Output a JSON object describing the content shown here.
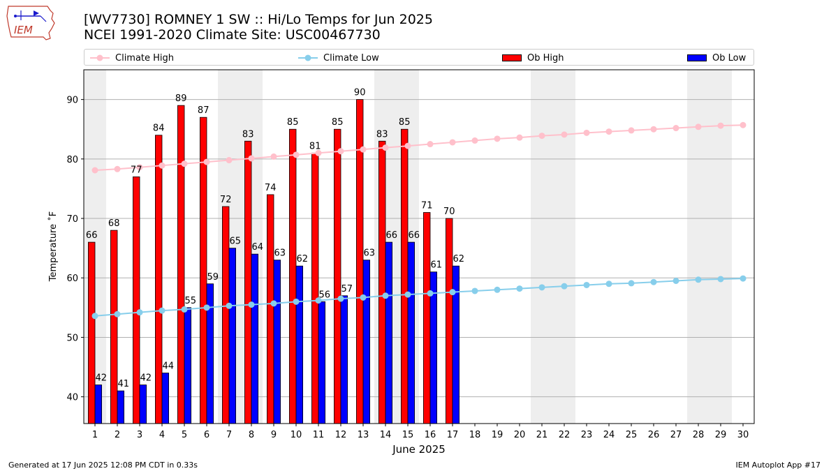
{
  "title": {
    "line1": "[WV7730] ROMNEY 1 SW :: Hi/Lo Temps for Jun 2025",
    "line2": "NCEI 1991-2020 Climate Site: USC00467730"
  },
  "logo": {
    "text": "IEM",
    "icon": "iem-iowa-logo-icon"
  },
  "footer": {
    "left": "Generated at 17 Jun 2025 12:08 PM CDT in 0.33s",
    "right": "IEM Autoplot App #17"
  },
  "chart_data": {
    "type": "bar",
    "xlabel": "June 2025",
    "ylabel": "Temperature ˚F",
    "ylim": [
      35.5,
      95
    ],
    "xlim": [
      0.5,
      30.5
    ],
    "yticks": [
      40,
      50,
      60,
      70,
      80,
      90
    ],
    "grid": "horizontal",
    "legend_position": "top",
    "days": [
      1,
      2,
      3,
      4,
      5,
      6,
      7,
      8,
      9,
      10,
      11,
      12,
      13,
      14,
      15,
      16,
      17,
      18,
      19,
      20,
      21,
      22,
      23,
      24,
      25,
      26,
      27,
      28,
      29,
      30
    ],
    "weekend_days": [
      1,
      7,
      8,
      14,
      15,
      21,
      22,
      28,
      29
    ],
    "legend": [
      {
        "label": "Climate High",
        "kind": "line",
        "color": "#ffc0cb"
      },
      {
        "label": "Climate Low",
        "kind": "line",
        "color": "#87ceeb"
      },
      {
        "label": "Ob High",
        "kind": "bar",
        "color": "#ff0000"
      },
      {
        "label": "Ob Low",
        "kind": "bar",
        "color": "#0000ff"
      }
    ],
    "series": [
      {
        "name": "Ob High",
        "kind": "bar",
        "color": "#ff0000",
        "values": [
          66,
          68,
          77,
          84,
          89,
          87,
          72,
          83,
          74,
          85,
          81,
          85,
          90,
          83,
          85,
          71,
          70
        ]
      },
      {
        "name": "Ob Low",
        "kind": "bar",
        "color": "#0000ff",
        "values": [
          42,
          41,
          42,
          44,
          55,
          59,
          65,
          64,
          63,
          62,
          56,
          57,
          63,
          66,
          66,
          61,
          62
        ]
      },
      {
        "name": "Climate High",
        "kind": "line",
        "color": "#ffc0cb",
        "values": [
          78.1,
          78.3,
          78.6,
          78.9,
          79.2,
          79.5,
          79.8,
          80.1,
          80.4,
          80.7,
          81.0,
          81.3,
          81.6,
          81.9,
          82.2,
          82.5,
          82.8,
          83.1,
          83.4,
          83.6,
          83.9,
          84.1,
          84.4,
          84.6,
          84.8,
          85.0,
          85.2,
          85.4,
          85.6,
          85.7
        ]
      },
      {
        "name": "Climate Low",
        "kind": "line",
        "color": "#87ceeb",
        "values": [
          53.6,
          53.9,
          54.2,
          54.5,
          54.7,
          55.0,
          55.3,
          55.5,
          55.7,
          56.0,
          56.2,
          56.5,
          56.7,
          57.0,
          57.2,
          57.4,
          57.6,
          57.8,
          58.0,
          58.2,
          58.4,
          58.6,
          58.8,
          59.0,
          59.1,
          59.3,
          59.5,
          59.7,
          59.8,
          59.9
        ]
      }
    ]
  }
}
